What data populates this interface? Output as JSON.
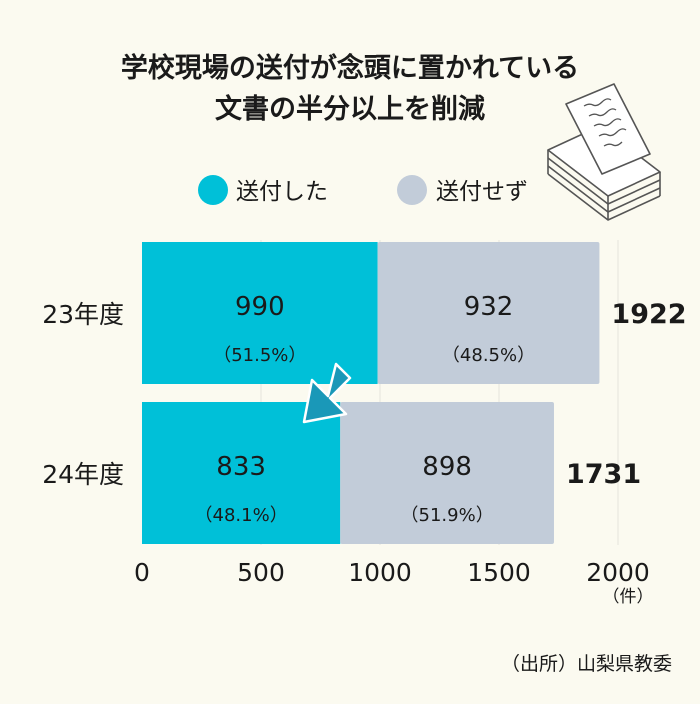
{
  "chart_data": {
    "type": "bar",
    "orientation": "horizontal",
    "stacked": true,
    "title_lines": [
      "学校現場の送付が念頭に置かれている",
      "文書の半分以上を削減"
    ],
    "categories": [
      "23年度",
      "24年度"
    ],
    "series": [
      {
        "name": "送付した",
        "color": "#00c0d8",
        "values": [
          990,
          833
        ],
        "value_labels": [
          "990",
          "833"
        ],
        "percent_labels": [
          "（51.5%）",
          "（48.1%）"
        ]
      },
      {
        "name": "送付せず",
        "color": "#c2ccd9",
        "values": [
          932,
          898
        ],
        "value_labels": [
          "932",
          "898"
        ],
        "percent_labels": [
          "（48.5%）",
          "（51.9%）"
        ]
      }
    ],
    "totals": [
      "1922",
      "1731"
    ],
    "total_values": [
      1922,
      1731
    ],
    "xlim": [
      0,
      2000
    ],
    "x_ticks": [
      0,
      500,
      1000,
      1500,
      2000
    ],
    "x_tick_labels": [
      "0",
      "500",
      "1000",
      "1500",
      "2000"
    ],
    "x_unit": "（件）",
    "grid": "vertical",
    "legend_position": "top"
  },
  "source": "（出所）山梨県教委",
  "icon": "document-stack-icon",
  "arrow_color": "#1a98b8"
}
